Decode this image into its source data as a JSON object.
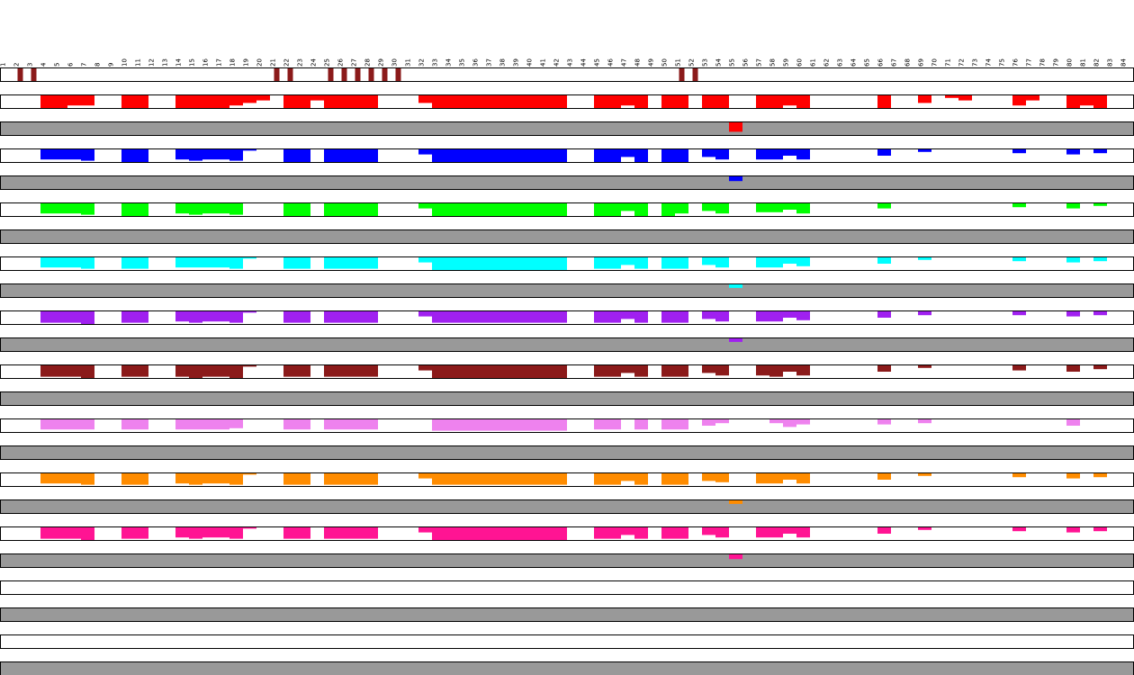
{
  "chart_data": {
    "type": "heatmap",
    "positions": [
      "1",
      "2",
      "3",
      "4",
      "5",
      "6",
      "7",
      "8",
      "9",
      "10",
      "11",
      "12",
      "13",
      "14",
      "15",
      "16",
      "17",
      "18",
      "19",
      "20",
      "21",
      "22",
      "23",
      "24",
      "25",
      "26",
      "27",
      "28",
      "29",
      "30",
      "31",
      "32",
      "33",
      "34",
      "35",
      "36",
      "37",
      "38",
      "39",
      "40",
      "41",
      "42",
      "43",
      "44",
      "45",
      "46",
      "47",
      "48",
      "49",
      "50",
      "51",
      "52",
      "53",
      "54",
      "55",
      "56",
      "57",
      "58",
      "59",
      "60",
      "61",
      "62",
      "63",
      "64",
      "65",
      "66",
      "67",
      "68",
      "69",
      "70",
      "71",
      "72",
      "73",
      "74",
      "75",
      "76",
      "77",
      "78",
      "79",
      "80",
      "81",
      "82",
      "83",
      "84"
    ],
    "marker_positions": [
      2,
      3,
      21,
      22,
      25,
      26,
      27,
      28,
      29,
      30,
      51,
      52
    ],
    "marker_color": "#8b1a1a",
    "tracks": [
      {
        "color": "#ff0000",
        "max": 1.0,
        "values": [
          0,
          0,
          0,
          1,
          1,
          0.8,
          0.8,
          0,
          0,
          1,
          1,
          0,
          0,
          1,
          1,
          1,
          1,
          0.8,
          0.6,
          0.4,
          0,
          1,
          1,
          0.4,
          1,
          1,
          1,
          1,
          0,
          0,
          0,
          0.6,
          1,
          1,
          1,
          1,
          1,
          1,
          1,
          1,
          1,
          1,
          0,
          0,
          1,
          1,
          0.8,
          1,
          0,
          1,
          1,
          0,
          1,
          1,
          0,
          0,
          1,
          1,
          0.8,
          1,
          0,
          0,
          0,
          0,
          0,
          1,
          0,
          0,
          0.6,
          0,
          0.2,
          0.4,
          0,
          0,
          0,
          0.8,
          0.4,
          0,
          0,
          1,
          0.8,
          1,
          0,
          0
        ],
        "highlight": {
          "pos": 55,
          "value": 0.8
        }
      },
      {
        "color": "#0000ff",
        "max": 1.0,
        "values": [
          0,
          0,
          0,
          0.8,
          0.8,
          0.8,
          0.9,
          0,
          0,
          1,
          1,
          0,
          0,
          0.8,
          0.9,
          0.8,
          0.8,
          0.9,
          0.1,
          0,
          0,
          1,
          1,
          0,
          1,
          1,
          1,
          1,
          0,
          0,
          0,
          0.4,
          1,
          1,
          1,
          1,
          1,
          1,
          1,
          1,
          1,
          1,
          0,
          0,
          1,
          1,
          0.6,
          1,
          0,
          1,
          1,
          0,
          0.6,
          0.8,
          0,
          0,
          0.8,
          0.8,
          0.5,
          0.8,
          0,
          0,
          0,
          0,
          0,
          0.5,
          0,
          0,
          0.2,
          0,
          0,
          0,
          0,
          0,
          0,
          0.3,
          0,
          0,
          0,
          0.4,
          0,
          0.3,
          0,
          0
        ],
        "highlight": {
          "pos": 55,
          "value": 0.4
        }
      },
      {
        "color": "#00ff00",
        "max": 1.0,
        "values": [
          0,
          0,
          0,
          0.8,
          0.8,
          0.8,
          0.9,
          0,
          0,
          1,
          1,
          0,
          0,
          0.8,
          0.9,
          0.8,
          0.8,
          0.9,
          0,
          0,
          0,
          1,
          1,
          0,
          1,
          1,
          1,
          1,
          0,
          0,
          0,
          0.4,
          1,
          1,
          1,
          1,
          1,
          1,
          1,
          1,
          1,
          1,
          0,
          0,
          1,
          1,
          0.6,
          1,
          0,
          1,
          0.8,
          0,
          0.6,
          0.8,
          0,
          0,
          0.7,
          0.7,
          0.5,
          0.8,
          0,
          0,
          0,
          0,
          0,
          0.4,
          0,
          0,
          0,
          0,
          0,
          0,
          0,
          0,
          0,
          0.3,
          0,
          0,
          0,
          0.4,
          0,
          0.2,
          0,
          0
        ],
        "highlight": null
      },
      {
        "color": "#00ffff",
        "max": 1.0,
        "values": [
          0,
          0,
          0,
          0.8,
          0.8,
          0.8,
          0.9,
          0,
          0,
          0.9,
          0.9,
          0,
          0,
          0.8,
          0.8,
          0.8,
          0.8,
          0.9,
          0.1,
          0,
          0,
          0.9,
          0.9,
          0,
          0.9,
          0.9,
          0.9,
          0.9,
          0,
          0,
          0,
          0.4,
          1,
          1,
          1,
          1,
          1,
          1,
          1,
          1,
          1,
          1,
          0,
          0,
          0.9,
          0.9,
          0.6,
          0.9,
          0,
          0.9,
          0.9,
          0,
          0.6,
          0.8,
          0,
          0,
          0.8,
          0.8,
          0.5,
          0.7,
          0,
          0,
          0,
          0,
          0,
          0.5,
          0,
          0,
          0.2,
          0,
          0,
          0,
          0,
          0,
          0,
          0.3,
          0,
          0,
          0,
          0.4,
          0,
          0.3,
          0,
          0
        ],
        "highlight": {
          "pos": 55,
          "value": 0.3
        }
      },
      {
        "color": "#a020f0",
        "max": 1.0,
        "values": [
          0,
          0,
          0,
          0.9,
          0.9,
          0.9,
          1,
          0,
          0,
          0.9,
          0.9,
          0,
          0,
          0.8,
          0.9,
          0.8,
          0.8,
          0.9,
          0.1,
          0,
          0,
          0.9,
          0.9,
          0,
          0.9,
          0.9,
          0.9,
          0.9,
          0,
          0,
          0,
          0.4,
          0.9,
          0.9,
          0.9,
          0.9,
          0.9,
          0.9,
          0.9,
          0.9,
          0.9,
          0.9,
          0,
          0,
          0.9,
          0.9,
          0.6,
          0.9,
          0,
          0.9,
          0.9,
          0,
          0.6,
          0.8,
          0,
          0,
          0.8,
          0.8,
          0.5,
          0.7,
          0,
          0,
          0,
          0,
          0,
          0.5,
          0,
          0,
          0.3,
          0,
          0,
          0,
          0,
          0,
          0,
          0.3,
          0,
          0,
          0,
          0.4,
          0,
          0.3,
          0,
          0
        ],
        "highlight": {
          "pos": 55,
          "value": 0.3
        }
      },
      {
        "color": "#8b1a1a",
        "max": 1.0,
        "values": [
          0,
          0,
          0,
          0.9,
          0.9,
          0.9,
          1,
          0,
          0,
          0.9,
          0.9,
          0,
          0,
          0.9,
          1,
          0.9,
          0.9,
          1,
          0.1,
          0,
          0,
          0.9,
          0.9,
          0,
          0.9,
          0.9,
          0.9,
          0.9,
          0,
          0,
          0,
          0.4,
          1,
          1,
          1,
          1,
          1,
          1,
          1,
          1,
          1,
          1,
          0,
          0,
          0.9,
          0.9,
          0.6,
          0.9,
          0,
          0.9,
          0.9,
          0,
          0.6,
          0.8,
          0,
          0,
          0.8,
          0.9,
          0.5,
          0.8,
          0,
          0,
          0,
          0,
          0,
          0.5,
          0,
          0,
          0.2,
          0,
          0,
          0,
          0,
          0,
          0,
          0.4,
          0,
          0,
          0,
          0.5,
          0,
          0.3,
          0,
          0
        ],
        "highlight": null
      },
      {
        "color": "#ee82ee",
        "max": 1.0,
        "values": [
          0,
          0,
          0,
          0.8,
          0.8,
          0.8,
          0.8,
          0,
          0,
          0.8,
          0.8,
          0,
          0,
          0.8,
          0.8,
          0.8,
          0.8,
          0.7,
          0,
          0,
          0,
          0.8,
          0.8,
          0,
          0.8,
          0.8,
          0.8,
          0.8,
          0,
          0,
          0,
          0,
          0.9,
          0.9,
          0.9,
          0.9,
          0.9,
          0.9,
          0.9,
          0.9,
          0.9,
          0.9,
          0,
          0,
          0.8,
          0.8,
          0,
          0.8,
          0,
          0.8,
          0.8,
          0,
          0.5,
          0.3,
          0,
          0,
          0,
          0.3,
          0.6,
          0.4,
          0,
          0,
          0,
          0,
          0,
          0.4,
          0,
          0,
          0.3,
          0,
          0,
          0,
          0,
          0,
          0,
          0,
          0,
          0,
          0,
          0.5,
          0,
          0,
          0,
          0
        ],
        "highlight": null
      },
      {
        "color": "#ff8c00",
        "max": 1.0,
        "values": [
          0,
          0,
          0,
          0.8,
          0.8,
          0.8,
          0.9,
          0,
          0,
          0.9,
          0.9,
          0,
          0,
          0.8,
          0.9,
          0.8,
          0.8,
          0.9,
          0.1,
          0,
          0,
          0.9,
          0.9,
          0,
          0.9,
          0.9,
          0.9,
          0.9,
          0,
          0,
          0,
          0.4,
          0.9,
          0.9,
          0.9,
          0.9,
          0.9,
          0.9,
          0.9,
          0.9,
          0.9,
          0.9,
          0,
          0,
          0.9,
          0.9,
          0.6,
          0.9,
          0,
          0.9,
          0.9,
          0,
          0.6,
          0.7,
          0,
          0,
          0.8,
          0.8,
          0.5,
          0.8,
          0,
          0,
          0,
          0,
          0,
          0.5,
          0,
          0,
          0.2,
          0,
          0,
          0,
          0,
          0,
          0,
          0.3,
          0,
          0,
          0,
          0.4,
          0,
          0.3,
          0,
          0
        ],
        "highlight": {
          "pos": 55,
          "value": 0.3
        }
      },
      {
        "color": "#ff1493",
        "max": 1.0,
        "values": [
          0,
          0,
          0,
          0.9,
          0.9,
          0.9,
          1,
          0,
          0,
          0.9,
          0.9,
          0,
          0,
          0.8,
          0.9,
          0.8,
          0.8,
          0.9,
          0.1,
          0,
          0,
          0.9,
          0.9,
          0,
          0.9,
          0.9,
          0.9,
          0.9,
          0,
          0,
          0,
          0.4,
          1,
          1,
          1,
          1,
          1,
          1,
          1,
          1,
          1,
          1,
          0,
          0,
          0.9,
          0.9,
          0.6,
          0.9,
          0,
          0.9,
          0.9,
          0,
          0.6,
          0.8,
          0,
          0,
          0.8,
          0.8,
          0.5,
          0.8,
          0,
          0,
          0,
          0,
          0,
          0.5,
          0,
          0,
          0.2,
          0,
          0,
          0,
          0,
          0,
          0,
          0.3,
          0,
          0,
          0,
          0.4,
          0,
          0.3,
          0,
          0
        ],
        "highlight": {
          "pos": 55,
          "value": 0.4
        }
      },
      {
        "color": "#ffffff",
        "max": 1.0,
        "values": [],
        "highlight": null
      },
      {
        "color": "#ffffff",
        "max": 1.0,
        "values": [],
        "highlight": null
      }
    ],
    "gray_band_color": "#999999",
    "title": "",
    "xlabel": "",
    "ylabel": "",
    "legend": "none",
    "grid": false
  }
}
